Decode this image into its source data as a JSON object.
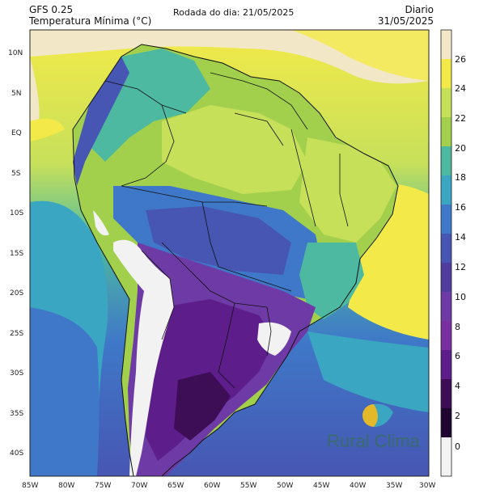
{
  "header": {
    "model": "GFS 0.25",
    "variable": "Temperatura Mínima (°C)",
    "run": "Rodada do dia: 21/05/2025",
    "frequency": "Diario",
    "valid_date": "31/05/2025"
  },
  "map": {
    "lat_ticks": [
      "10N",
      "5N",
      "EQ",
      "5S",
      "10S",
      "15S",
      "20S",
      "25S",
      "30S",
      "35S",
      "40S"
    ],
    "lon_ticks": [
      "85W",
      "80W",
      "75W",
      "70W",
      "65W",
      "60W",
      "55W",
      "50W",
      "45W",
      "40W",
      "35W",
      "30W"
    ]
  },
  "colorbar": {
    "labels": [
      "26",
      "24",
      "22",
      "20",
      "18",
      "16",
      "14",
      "12",
      "10",
      "8",
      "6",
      "4",
      "2",
      "0"
    ],
    "colors": [
      "#f2e8c8",
      "#f3ea49",
      "#c7e05a",
      "#a2d04d",
      "#4cb9a0",
      "#3aa6c1",
      "#3f78c8",
      "#4756b3",
      "#4f3c9c",
      "#6e3aa6",
      "#7a2fa0",
      "#5d1d8a",
      "#3d0d56",
      "#f2f2f2"
    ]
  },
  "logo": {
    "text": "Rural Clima"
  }
}
